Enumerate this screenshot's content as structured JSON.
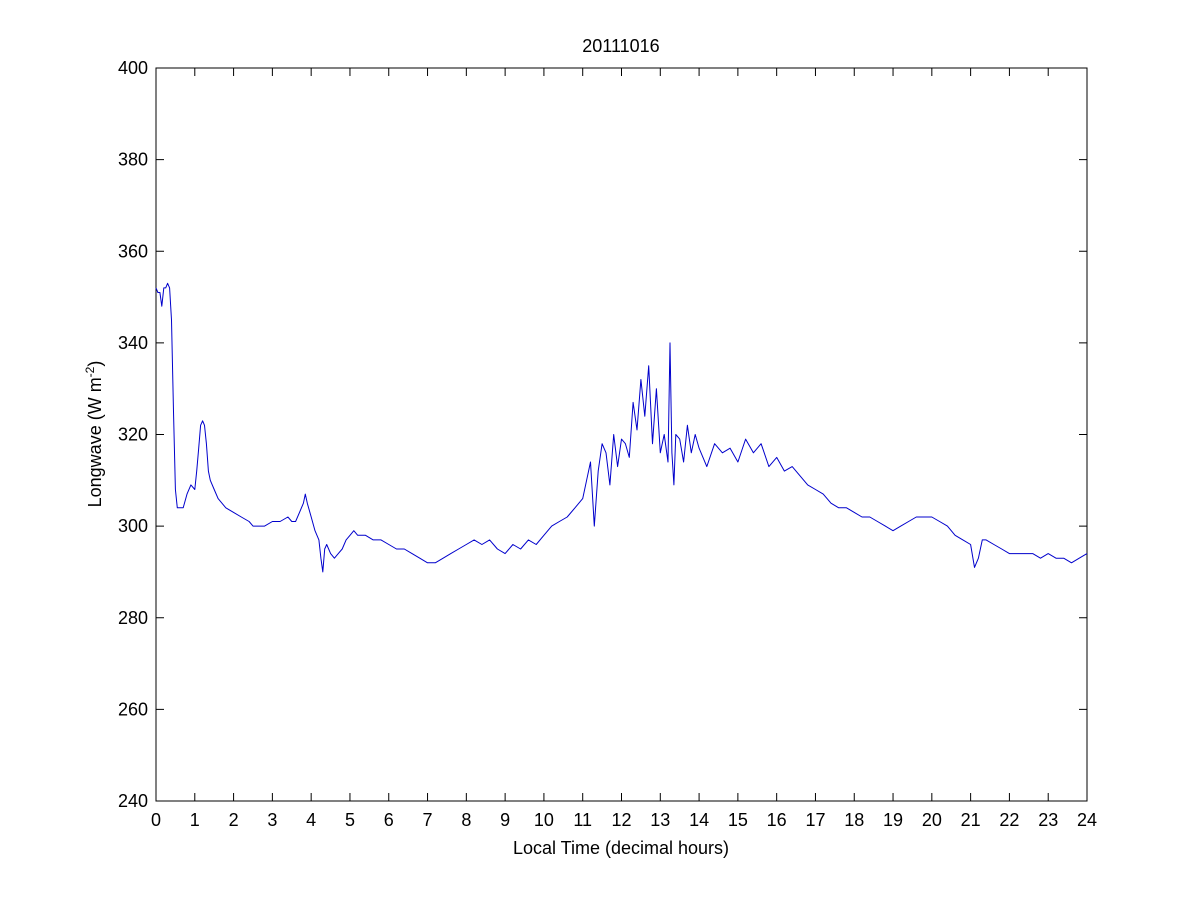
{
  "chart_data": {
    "type": "line",
    "title": "20111016",
    "xlabel": "Local Time (decimal hours)",
    "ylabel": {
      "text": "Longwave (W m",
      "superscript": "-2",
      "suffix": ")"
    },
    "xlim": [
      0,
      24
    ],
    "ylim": [
      240,
      400
    ],
    "xticks": [
      0,
      1,
      2,
      3,
      4,
      5,
      6,
      7,
      8,
      9,
      10,
      11,
      12,
      13,
      14,
      15,
      16,
      17,
      18,
      19,
      20,
      21,
      22,
      23,
      24
    ],
    "yticks": [
      240,
      260,
      280,
      300,
      320,
      340,
      360,
      380,
      400
    ],
    "grid": false,
    "legend": "none",
    "series": [
      {
        "color": "#0000cc",
        "x": [
          0,
          0.05,
          0.1,
          0.15,
          0.2,
          0.25,
          0.3,
          0.35,
          0.4,
          0.45,
          0.5,
          0.55,
          0.6,
          0.7,
          0.8,
          0.9,
          1.0,
          1.05,
          1.1,
          1.15,
          1.2,
          1.25,
          1.3,
          1.35,
          1.4,
          1.5,
          1.6,
          1.8,
          2.0,
          2.2,
          2.4,
          2.5,
          2.6,
          2.8,
          3.0,
          3.2,
          3.4,
          3.5,
          3.6,
          3.7,
          3.8,
          3.85,
          3.9,
          4.0,
          4.1,
          4.2,
          4.25,
          4.3,
          4.35,
          4.4,
          4.5,
          4.6,
          4.7,
          4.8,
          4.9,
          5.0,
          5.1,
          5.2,
          5.4,
          5.6,
          5.8,
          6.0,
          6.2,
          6.4,
          6.6,
          6.8,
          7.0,
          7.2,
          7.4,
          7.6,
          7.8,
          8.0,
          8.2,
          8.4,
          8.6,
          8.8,
          9.0,
          9.2,
          9.4,
          9.6,
          9.8,
          10.0,
          10.2,
          10.4,
          10.6,
          10.8,
          11.0,
          11.1,
          11.2,
          11.3,
          11.4,
          11.5,
          11.6,
          11.7,
          11.8,
          11.9,
          12.0,
          12.1,
          12.2,
          12.3,
          12.4,
          12.5,
          12.6,
          12.7,
          12.8,
          12.9,
          13.0,
          13.1,
          13.2,
          13.25,
          13.3,
          13.35,
          13.4,
          13.5,
          13.6,
          13.7,
          13.8,
          13.9,
          14.0,
          14.2,
          14.4,
          14.6,
          14.8,
          15.0,
          15.2,
          15.4,
          15.6,
          15.8,
          16.0,
          16.2,
          16.4,
          16.6,
          16.8,
          17.0,
          17.2,
          17.4,
          17.6,
          17.8,
          18.0,
          18.2,
          18.4,
          18.6,
          18.8,
          19.0,
          19.2,
          19.4,
          19.6,
          19.8,
          20.0,
          20.2,
          20.4,
          20.6,
          20.8,
          21.0,
          21.1,
          21.2,
          21.3,
          21.4,
          21.6,
          21.8,
          22.0,
          22.2,
          22.4,
          22.6,
          22.8,
          23.0,
          23.2,
          23.4,
          23.6,
          23.8,
          24.0
        ],
        "y": [
          352,
          351,
          351,
          348,
          352,
          352,
          353,
          352,
          345,
          325,
          308,
          304,
          304,
          304,
          307,
          309,
          308,
          312,
          317,
          322,
          323,
          322,
          318,
          312,
          310,
          308,
          306,
          304,
          303,
          302,
          301,
          300,
          300,
          300,
          301,
          301,
          302,
          301,
          301,
          303,
          305,
          307,
          305,
          302,
          299,
          297,
          293,
          290,
          295,
          296,
          294,
          293,
          294,
          295,
          297,
          298,
          299,
          298,
          298,
          297,
          297,
          296,
          295,
          295,
          294,
          293,
          292,
          292,
          293,
          294,
          295,
          296,
          297,
          296,
          297,
          295,
          294,
          296,
          295,
          297,
          296,
          298,
          300,
          301,
          302,
          304,
          306,
          310,
          314,
          300,
          312,
          318,
          316,
          309,
          320,
          313,
          319,
          318,
          315,
          327,
          321,
          332,
          324,
          335,
          318,
          330,
          316,
          320,
          314,
          340,
          316,
          309,
          320,
          319,
          314,
          322,
          316,
          320,
          317,
          313,
          318,
          316,
          317,
          314,
          319,
          316,
          318,
          313,
          315,
          312,
          313,
          311,
          309,
          308,
          307,
          305,
          304,
          304,
          303,
          302,
          302,
          301,
          300,
          299,
          300,
          301,
          302,
          302,
          302,
          301,
          300,
          298,
          297,
          296,
          291,
          293,
          297,
          297,
          296,
          295,
          294,
          294,
          294,
          294,
          293,
          294,
          293,
          293,
          292,
          293,
          294
        ]
      }
    ]
  }
}
